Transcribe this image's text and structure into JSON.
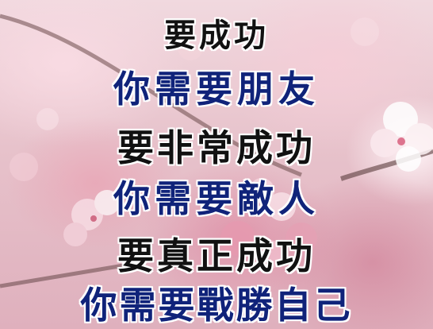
{
  "poem": {
    "line1": "要成功",
    "line2": "你需要朋友",
    "line3": "要非常成功",
    "line4": "你需要敵人",
    "line5": "要真正成功",
    "line6": "你需要戰勝自己"
  },
  "colors": {
    "black_text": "#111111",
    "blue_text": "#10237a",
    "background": "#e8c9cf"
  }
}
